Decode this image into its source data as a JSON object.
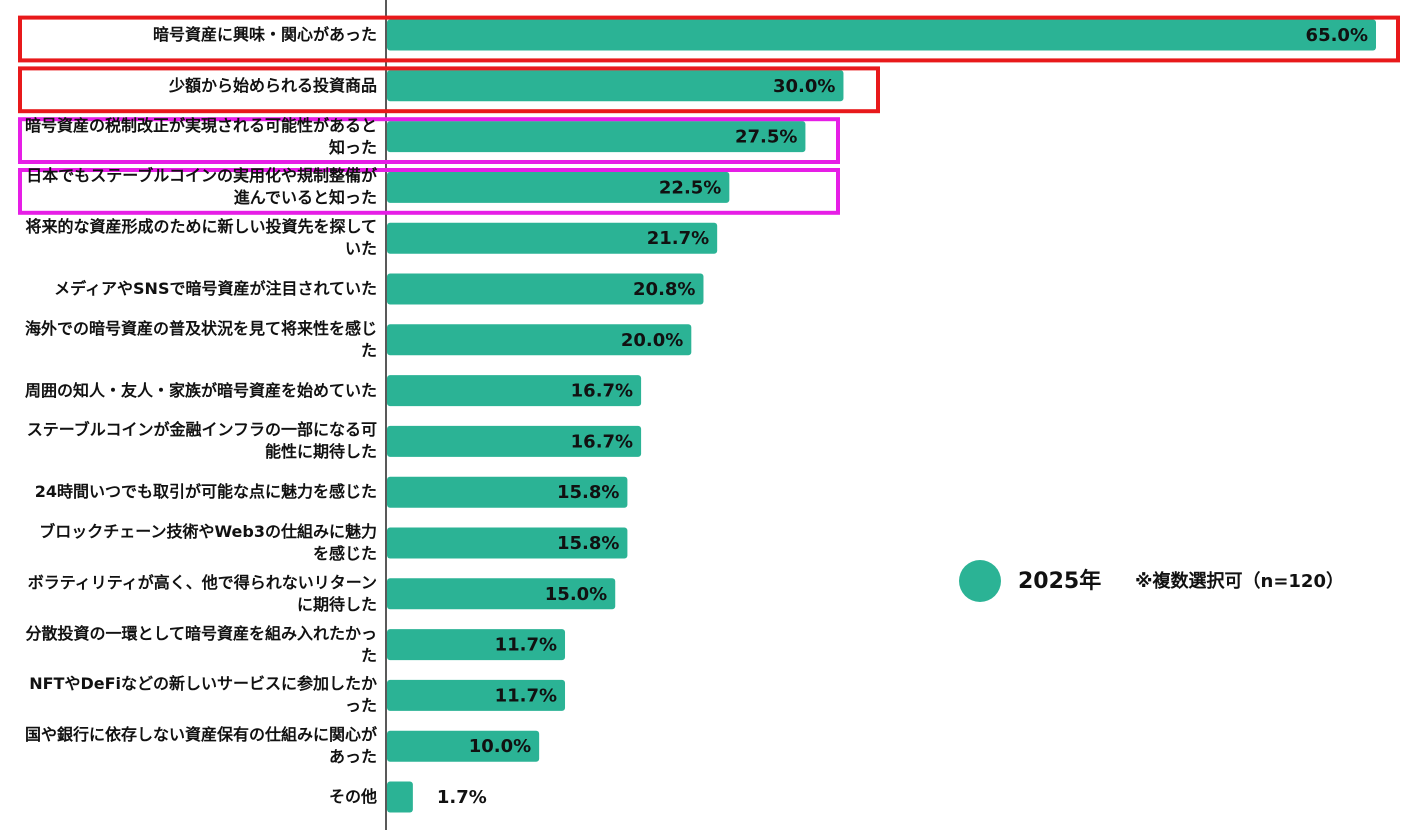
{
  "chart_data": {
    "type": "bar",
    "orientation": "horizontal",
    "categories": [
      "暗号資産に興味・関心があった",
      "少額から始められる投資商品",
      "暗号資産の税制改正が実現される可能性があると知った",
      "日本でもステーブルコインの実用化や規制整備が進んでいると知った",
      "将来的な資産形成のために新しい投資先を探していた",
      "メディアやSNSで暗号資産が注目されていた",
      "海外での暗号資産の普及状況を見て将来性を感じた",
      "周囲の知人・友人・家族が暗号資産を始めていた",
      "ステーブルコインが金融インフラの一部になる可能性に期待した",
      "24時間いつでも取引が可能な点に魅力を感じた",
      "ブロックチェーン技術やWeb3の仕組みに魅力を感じた",
      "ボラティリティが高く、他で得られないリターンに期待した",
      "分散投資の一環として暗号資産を組み入れたかった",
      "NFTやDeFiなどの新しいサービスに参加したかった",
      "国や銀行に依存しない資産保有の仕組みに関心があった",
      "その他"
    ],
    "series": [
      {
        "name": "2025年",
        "color": "#2bb395",
        "values": [
          65,
          30,
          27.5,
          22.5,
          21.7,
          20.8,
          20,
          16.7,
          16.7,
          15.8,
          15.8,
          15,
          11.7,
          11.7,
          10,
          1.7
        ],
        "value_labels": [
          "65.0%",
          "30.0%",
          "27.5%",
          "22.5%",
          "21.7%",
          "20.8%",
          "20.0%",
          "16.7%",
          "16.7%",
          "15.8%",
          "15.8%",
          "15.0%",
          "11.7%",
          "11.7%",
          "10.0%",
          "1.7%"
        ]
      }
    ],
    "note": "※複数選択可（n=120）"
  }
}
